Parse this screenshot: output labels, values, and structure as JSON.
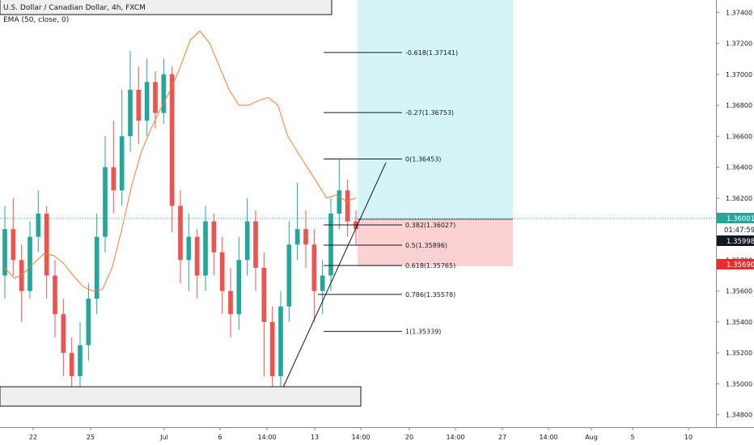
{
  "symbol_title": "U.S. Dollar / Canadian Dollar, 4h, FXCM",
  "indicator_label": "EMA (50, close, 0)",
  "price_axis": {
    "ticks": [
      "1.37400",
      "1.37200",
      "1.37000",
      "1.36800",
      "1.36600",
      "1.36400",
      "1.36200",
      "1.36000",
      "1.35800",
      "1.35600",
      "1.35400",
      "1.35200",
      "1.35000",
      "1.34800"
    ],
    "tick_values": [
      1.374,
      1.372,
      1.37,
      1.368,
      1.366,
      1.364,
      1.362,
      1.36,
      1.358,
      1.356,
      1.354,
      1.352,
      1.35,
      1.348
    ]
  },
  "time_axis": {
    "labels": [
      "22",
      "25",
      "Jul",
      "6",
      "14:00",
      "13",
      "14:00",
      "20",
      "14:00",
      "27",
      "14:00",
      "Aug",
      "5",
      "10"
    ]
  },
  "badges": {
    "last_price": "1.36001",
    "countdown": "01:47:59",
    "bid_price": "1.35998",
    "stop_price": "1.35690"
  },
  "colors": {
    "up": "#26a69a",
    "down": "#ef5350",
    "ema": "#f57c3a",
    "target_zone": "#d5f4f8",
    "stop_zone": "#fbd1d1",
    "last_price_badge": "#26a69a",
    "stop_badge": "#ef2b2b"
  },
  "chart_data": {
    "type": "candlestick",
    "symbol": "USDCAD",
    "timeframe": "4h",
    "y_range": [
      1.3472,
      1.3748
    ],
    "fib_levels": [
      {
        "label": "-0.618(1.37141)",
        "value": 1.37141
      },
      {
        "label": "-0.27(1.36753)",
        "value": 1.36753
      },
      {
        "label": "0(1.36453)",
        "value": 1.36453
      },
      {
        "label": "0.382(1.36027)",
        "value": 1.36027
      },
      {
        "label": "0.5(1.35896)",
        "value": 1.35896
      },
      {
        "label": "0.618(1.35765)",
        "value": 1.35765
      },
      {
        "label": "0.786(1.35578)",
        "value": 1.35578
      },
      {
        "label": "1(1.35339)",
        "value": 1.35339
      }
    ],
    "position": {
      "entry": 1.36001,
      "target": 1.3748,
      "stop": 1.3569
    },
    "current_price": 1.36001,
    "ema_period": 50,
    "ema": [
      1.3575,
      1.3568,
      1.3572,
      1.3578,
      1.3584,
      1.3583,
      1.3578,
      1.357,
      1.3563,
      1.356,
      1.3561,
      1.3575,
      1.36,
      1.3628,
      1.365,
      1.3665,
      1.3678,
      1.369,
      1.3705,
      1.3722,
      1.3728,
      1.372,
      1.3705,
      1.369,
      1.368,
      1.368,
      1.3683,
      1.3685,
      1.368,
      1.366,
      1.365,
      1.364,
      1.363,
      1.362,
      1.3622,
      1.3618,
      1.362
    ],
    "candles": [
      [
        1.357,
        1.36,
        1.3615,
        1.3555
      ],
      [
        1.36,
        1.358,
        1.362,
        1.357
      ],
      [
        1.358,
        1.356,
        1.359,
        1.354
      ],
      [
        1.356,
        1.3595,
        1.3605,
        1.3555
      ],
      [
        1.3595,
        1.361,
        1.3625,
        1.3585
      ],
      [
        1.361,
        1.357,
        1.3615,
        1.3555
      ],
      [
        1.357,
        1.3545,
        1.358,
        1.353
      ],
      [
        1.3545,
        1.352,
        1.3555,
        1.3505
      ],
      [
        1.352,
        1.3505,
        1.353,
        1.349
      ],
      [
        1.3505,
        1.3525,
        1.354,
        1.3495
      ],
      [
        1.3525,
        1.3555,
        1.3565,
        1.3515
      ],
      [
        1.3555,
        1.3595,
        1.361,
        1.3545
      ],
      [
        1.3595,
        1.364,
        1.366,
        1.3585
      ],
      [
        1.364,
        1.3625,
        1.367,
        1.361
      ],
      [
        1.3625,
        1.366,
        1.369,
        1.3615
      ],
      [
        1.366,
        1.369,
        1.3715,
        1.365
      ],
      [
        1.369,
        1.367,
        1.3705,
        1.3655
      ],
      [
        1.367,
        1.3695,
        1.371,
        1.366
      ],
      [
        1.3695,
        1.3675,
        1.3702,
        1.3665
      ],
      [
        1.3675,
        1.37,
        1.371,
        1.3668
      ],
      [
        1.37,
        1.3615,
        1.3705,
        1.3598
      ],
      [
        1.3615,
        1.358,
        1.3625,
        1.3565
      ],
      [
        1.358,
        1.3595,
        1.361,
        1.356
      ],
      [
        1.3595,
        1.357,
        1.36,
        1.3555
      ],
      [
        1.357,
        1.3605,
        1.3615,
        1.356
      ],
      [
        1.3605,
        1.3585,
        1.361,
        1.357
      ],
      [
        1.3585,
        1.356,
        1.3595,
        1.3545
      ],
      [
        1.356,
        1.3545,
        1.3575,
        1.353
      ],
      [
        1.3545,
        1.358,
        1.3595,
        1.3535
      ],
      [
        1.358,
        1.3605,
        1.362,
        1.357
      ],
      [
        1.3605,
        1.3575,
        1.3612,
        1.356
      ],
      [
        1.3575,
        1.354,
        1.3585,
        1.3505
      ],
      [
        1.354,
        1.3505,
        1.355,
        1.349
      ],
      [
        1.3505,
        1.355,
        1.356,
        1.3495
      ],
      [
        1.355,
        1.359,
        1.3605,
        1.354
      ],
      [
        1.359,
        1.36,
        1.363,
        1.358
      ],
      [
        1.36,
        1.359,
        1.3612,
        1.3575
      ],
      [
        1.359,
        1.356,
        1.36,
        1.354
      ],
      [
        1.356,
        1.357,
        1.358,
        1.3545
      ],
      [
        1.357,
        1.361,
        1.362,
        1.356
      ],
      [
        1.361,
        1.3625,
        1.3645,
        1.36
      ],
      [
        1.3625,
        1.3605,
        1.3632,
        1.3595
      ],
      [
        1.3605,
        1.36,
        1.3612,
        1.359
      ]
    ]
  }
}
